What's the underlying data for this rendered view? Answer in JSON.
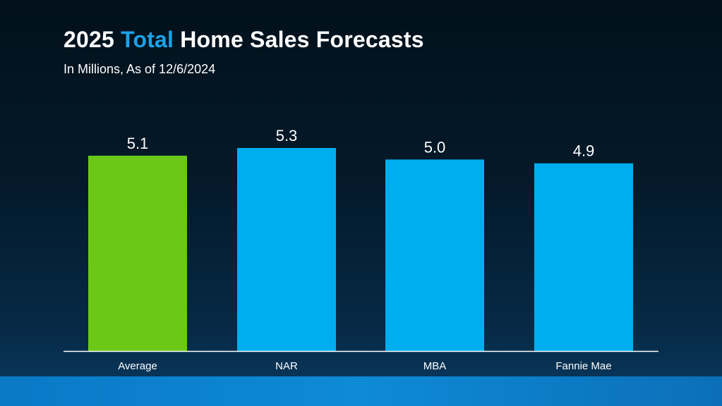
{
  "header": {
    "title_prefix": "2025 ",
    "title_accent": "Total",
    "title_suffix": " Home Sales Forecasts",
    "subtitle": "In Millions, As of 12/6/2024"
  },
  "colors": {
    "background": "#04192a",
    "title": "#ffffff",
    "accent": "#1aa3e8",
    "average_bar": "#6cc817",
    "forecast_bar": "#00aeef",
    "axis_line": "#ffffff",
    "labels": "#ffffff"
  },
  "chart_data": {
    "type": "bar",
    "title": "2025 Total Home Sales Forecasts",
    "subtitle": "In Millions, As of 12/6/2024",
    "categories": [
      "Average",
      "NAR",
      "MBA",
      "Fannie Mae"
    ],
    "values": [
      5.1,
      5.3,
      5.0,
      4.9
    ],
    "value_labels": [
      "5.1",
      "5.3",
      "5.0",
      "4.9"
    ],
    "bar_colors": [
      "#6cc817",
      "#00aeef",
      "#00aeef",
      "#00aeef"
    ],
    "xlabel": "",
    "ylabel": "",
    "ylim": [
      0,
      5.3
    ],
    "grid": false,
    "legend": "none"
  }
}
